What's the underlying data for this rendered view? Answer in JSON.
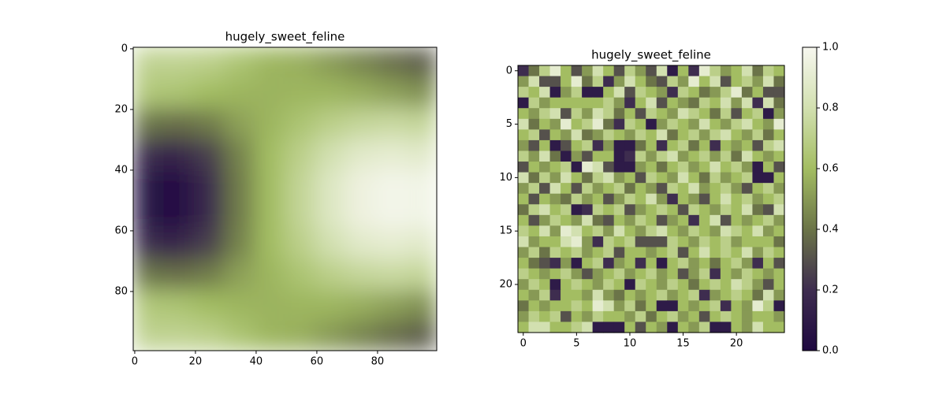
{
  "chart_data": [
    {
      "type": "heatmap",
      "title": "hugely_sweet_feline",
      "xlim": [
        -0.5,
        99.5
      ],
      "ylim": [
        99.5,
        -0.5
      ],
      "xticks": [
        0,
        20,
        40,
        60,
        80
      ],
      "yticks": [
        0,
        20,
        40,
        60,
        80
      ],
      "colormap": [
        "#1e0840",
        "#3e2d4f",
        "#6b7448",
        "#a3bd62",
        "#d2e0b0",
        "#f7f7ef"
      ],
      "z": [
        [
          0.72,
          0.72,
          0.7,
          0.64,
          0.58,
          0.56,
          0.5,
          0.44,
          0.38,
          0.33
        ],
        [
          0.66,
          0.64,
          0.6,
          0.58,
          0.57,
          0.58,
          0.58,
          0.56,
          0.52,
          0.48
        ],
        [
          0.4,
          0.38,
          0.42,
          0.52,
          0.58,
          0.64,
          0.7,
          0.74,
          0.76,
          0.74
        ],
        [
          0.18,
          0.16,
          0.25,
          0.44,
          0.6,
          0.7,
          0.8,
          0.88,
          0.9,
          0.88
        ],
        [
          0.06,
          0.05,
          0.18,
          0.42,
          0.6,
          0.73,
          0.86,
          0.95,
          0.98,
          0.97
        ],
        [
          0.06,
          0.05,
          0.18,
          0.42,
          0.6,
          0.73,
          0.86,
          0.95,
          0.98,
          0.97
        ],
        [
          0.18,
          0.16,
          0.25,
          0.44,
          0.6,
          0.7,
          0.8,
          0.88,
          0.9,
          0.88
        ],
        [
          0.4,
          0.38,
          0.42,
          0.52,
          0.58,
          0.64,
          0.7,
          0.74,
          0.76,
          0.74
        ],
        [
          0.66,
          0.64,
          0.6,
          0.58,
          0.57,
          0.58,
          0.58,
          0.56,
          0.52,
          0.48
        ],
        [
          0.72,
          0.72,
          0.7,
          0.64,
          0.58,
          0.56,
          0.5,
          0.44,
          0.38,
          0.33
        ]
      ]
    },
    {
      "type": "heatmap",
      "title": "hugely_sweet_feline",
      "xlim": [
        -0.5,
        24.5
      ],
      "ylim": [
        24.5,
        -0.5
      ],
      "xticks": [
        0,
        5,
        10,
        15,
        20
      ],
      "yticks": [
        0,
        5,
        10,
        15,
        20
      ],
      "colormap": [
        "#1e0840",
        "#3e2d4f",
        "#6b7448",
        "#a3bd62",
        "#d2e0b0",
        "#f7f7ef"
      ],
      "colorbar": {
        "lim": [
          0,
          1
        ],
        "ticks": [
          {
            "value": 0,
            "label": "0.0"
          },
          0.2,
          0.4,
          0.6,
          0.8,
          {
            "value": 1,
            "label": "1.0"
          }
        ]
      },
      "z": [
        [
          0.2,
          0.4,
          0.7,
          0.9,
          0.6,
          0.3,
          0.5,
          0.8,
          0.6,
          0.3,
          0.7,
          0.5,
          0.3,
          0.8,
          0.1,
          0.6,
          0.2,
          0.9,
          0.7,
          0.5,
          0.6,
          0.8,
          0.4,
          0.7,
          0.6
        ],
        [
          0.5,
          0.8,
          0.3,
          0.3,
          0.6,
          0.9,
          0.4,
          0.7,
          0.2,
          0.5,
          0.8,
          0.6,
          0.4,
          0.3,
          0.7,
          0.5,
          0.9,
          0.6,
          0.8,
          0.3,
          0.6,
          0.7,
          0.5,
          0.8,
          0.4
        ],
        [
          0.7,
          0.6,
          0.8,
          0.1,
          0.5,
          0.7,
          0.1,
          0.1,
          0.6,
          0.8,
          0.3,
          0.7,
          0.6,
          0.5,
          0.2,
          0.7,
          0.6,
          0.4,
          0.5,
          0.7,
          0.9,
          0.4,
          0.6,
          0.3,
          0.3
        ],
        [
          0.1,
          0.7,
          0.5,
          0.6,
          0.6,
          0.6,
          0.6,
          0.6,
          0.7,
          0.5,
          0.2,
          0.6,
          0.8,
          0.3,
          0.6,
          0.5,
          0.4,
          0.7,
          0.6,
          0.8,
          0.5,
          0.8,
          0.2,
          0.8,
          0.4
        ],
        [
          0.6,
          0.5,
          0.7,
          0.8,
          0.3,
          0.7,
          0.5,
          0.8,
          0.7,
          0.4,
          0.6,
          0.3,
          0.7,
          0.6,
          0.5,
          0.8,
          0.7,
          0.6,
          0.4,
          0.7,
          0.3,
          0.6,
          0.7,
          0.1,
          0.5
        ],
        [
          0.8,
          0.4,
          0.6,
          0.5,
          0.9,
          0.6,
          0.7,
          0.9,
          0.4,
          0.2,
          0.7,
          0.6,
          0.1,
          0.5,
          0.7,
          0.6,
          0.5,
          0.8,
          0.6,
          0.5,
          0.7,
          0.8,
          0.6,
          0.5,
          0.9
        ],
        [
          0.6,
          0.7,
          0.3,
          0.6,
          0.5,
          0.8,
          0.4,
          0.5,
          0.7,
          0.6,
          0.5,
          0.7,
          0.6,
          0.8,
          0.4,
          0.6,
          0.7,
          0.5,
          0.7,
          0.8,
          0.6,
          0.5,
          0.7,
          0.4,
          0.6
        ],
        [
          0.5,
          0.3,
          0.6,
          0.1,
          0.3,
          0.6,
          0.7,
          0.2,
          0.5,
          0.1,
          0.1,
          0.4,
          0.6,
          0.2,
          0.6,
          0.7,
          0.4,
          0.6,
          0.2,
          0.6,
          0.5,
          0.6,
          0.3,
          0.7,
          0.8
        ],
        [
          0.7,
          0.5,
          0.8,
          0.4,
          0.1,
          0.5,
          0.3,
          0.6,
          0.6,
          0.1,
          0.2,
          0.7,
          0.5,
          0.7,
          0.8,
          0.5,
          0.6,
          0.7,
          0.5,
          0.7,
          0.4,
          0.8,
          0.6,
          0.5,
          0.6
        ],
        [
          0.3,
          0.6,
          0.5,
          0.6,
          0.7,
          0.1,
          0.9,
          0.8,
          0.3,
          0.1,
          0.1,
          0.5,
          0.6,
          0.4,
          0.6,
          0.7,
          0.5,
          0.6,
          0.8,
          0.6,
          0.7,
          0.5,
          0.1,
          0.6,
          0.3
        ],
        [
          0.8,
          0.4,
          0.7,
          0.5,
          0.8,
          0.6,
          0.4,
          0.7,
          0.8,
          0.5,
          0.6,
          0.3,
          0.7,
          0.6,
          0.5,
          0.8,
          0.6,
          0.4,
          0.7,
          0.5,
          0.6,
          0.7,
          0.1,
          0.1,
          0.6
        ],
        [
          0.5,
          0.7,
          0.3,
          0.8,
          0.6,
          0.3,
          0.7,
          0.5,
          0.6,
          0.7,
          0.4,
          0.6,
          0.5,
          0.3,
          0.7,
          0.6,
          0.8,
          0.5,
          0.6,
          0.7,
          0.5,
          0.3,
          0.6,
          0.7,
          0.5
        ],
        [
          0.6,
          0.3,
          0.6,
          0.5,
          0.4,
          0.7,
          0.5,
          0.6,
          0.3,
          0.5,
          0.7,
          0.6,
          0.8,
          0.5,
          0.2,
          0.6,
          0.5,
          0.3,
          0.6,
          0.8,
          0.6,
          0.7,
          0.5,
          0.6,
          0.7
        ],
        [
          0.4,
          0.7,
          0.8,
          0.6,
          0.7,
          0.1,
          0.2,
          0.7,
          0.6,
          0.7,
          0.3,
          0.5,
          0.6,
          0.7,
          0.6,
          0.3,
          0.7,
          0.6,
          0.5,
          0.7,
          0.6,
          0.8,
          0.4,
          0.3,
          0.8
        ],
        [
          0.6,
          0.3,
          0.5,
          0.7,
          0.6,
          0.5,
          0.8,
          0.4,
          0.3,
          0.6,
          0.5,
          0.7,
          0.6,
          0.3,
          0.5,
          0.6,
          0.2,
          0.6,
          0.8,
          0.3,
          0.6,
          0.5,
          0.6,
          0.7,
          0.5
        ],
        [
          0.7,
          0.6,
          0.8,
          0.5,
          0.9,
          0.8,
          0.6,
          0.7,
          0.5,
          0.8,
          0.6,
          0.5,
          0.7,
          0.8,
          0.6,
          0.5,
          0.7,
          0.6,
          0.5,
          0.8,
          0.7,
          0.6,
          0.8,
          0.5,
          0.6
        ],
        [
          0.8,
          0.5,
          0.6,
          0.6,
          0.8,
          0.9,
          0.5,
          0.2,
          0.7,
          0.6,
          0.7,
          0.3,
          0.3,
          0.3,
          0.7,
          0.6,
          0.5,
          0.7,
          0.6,
          0.7,
          0.5,
          0.6,
          0.6,
          0.6,
          0.4
        ],
        [
          0.5,
          0.7,
          0.4,
          0.7,
          0.6,
          0.7,
          0.5,
          0.6,
          0.7,
          0.3,
          0.6,
          0.6,
          0.5,
          0.6,
          0.7,
          0.3,
          0.6,
          0.8,
          0.6,
          0.7,
          0.6,
          0.8,
          0.5,
          0.7,
          0.6
        ],
        [
          0.6,
          0.4,
          0.3,
          0.2,
          0.5,
          0.1,
          0.6,
          0.7,
          0.2,
          0.5,
          0.6,
          0.2,
          0.6,
          0.1,
          0.6,
          0.7,
          0.5,
          0.6,
          0.4,
          0.6,
          0.7,
          0.5,
          0.2,
          0.6,
          0.3
        ],
        [
          0.7,
          0.6,
          0.5,
          0.6,
          0.7,
          0.5,
          0.3,
          0.5,
          0.6,
          0.7,
          0.5,
          0.6,
          0.7,
          0.5,
          0.6,
          0.3,
          0.5,
          0.7,
          0.2,
          0.6,
          0.5,
          0.7,
          0.6,
          0.5,
          0.6
        ],
        [
          0.5,
          0.7,
          0.6,
          0.1,
          0.6,
          0.7,
          0.6,
          0.5,
          0.7,
          0.6,
          0.1,
          0.7,
          0.6,
          0.5,
          0.7,
          0.6,
          0.4,
          0.6,
          0.7,
          0.6,
          0.8,
          0.7,
          0.5,
          0.3,
          0.6
        ],
        [
          0.6,
          0.5,
          0.7,
          0.2,
          0.6,
          0.6,
          0.5,
          0.8,
          0.5,
          0.4,
          0.6,
          0.5,
          0.6,
          0.7,
          0.5,
          0.6,
          0.7,
          0.2,
          0.5,
          0.6,
          0.7,
          0.6,
          0.4,
          0.8,
          0.5
        ],
        [
          0.4,
          0.6,
          0.5,
          0.6,
          0.6,
          0.7,
          0.6,
          0.9,
          0.8,
          0.5,
          0.7,
          0.4,
          0.6,
          0.1,
          0.1,
          0.6,
          0.5,
          0.6,
          0.7,
          0.2,
          0.6,
          0.5,
          0.9,
          0.7,
          0.1
        ],
        [
          0.5,
          0.7,
          0.6,
          0.7,
          0.3,
          0.6,
          0.5,
          0.7,
          0.6,
          0.6,
          0.5,
          0.7,
          0.4,
          0.6,
          0.7,
          0.5,
          0.6,
          0.3,
          0.6,
          0.7,
          0.6,
          0.5,
          0.6,
          0.6,
          0.5
        ],
        [
          0.6,
          0.8,
          0.8,
          0.6,
          0.6,
          0.7,
          0.8,
          0.1,
          0.1,
          0.1,
          0.6,
          0.3,
          0.6,
          0.5,
          0.1,
          0.6,
          0.5,
          0.7,
          0.1,
          0.1,
          0.6,
          0.5,
          0.8,
          0.6,
          0.6
        ]
      ]
    }
  ]
}
